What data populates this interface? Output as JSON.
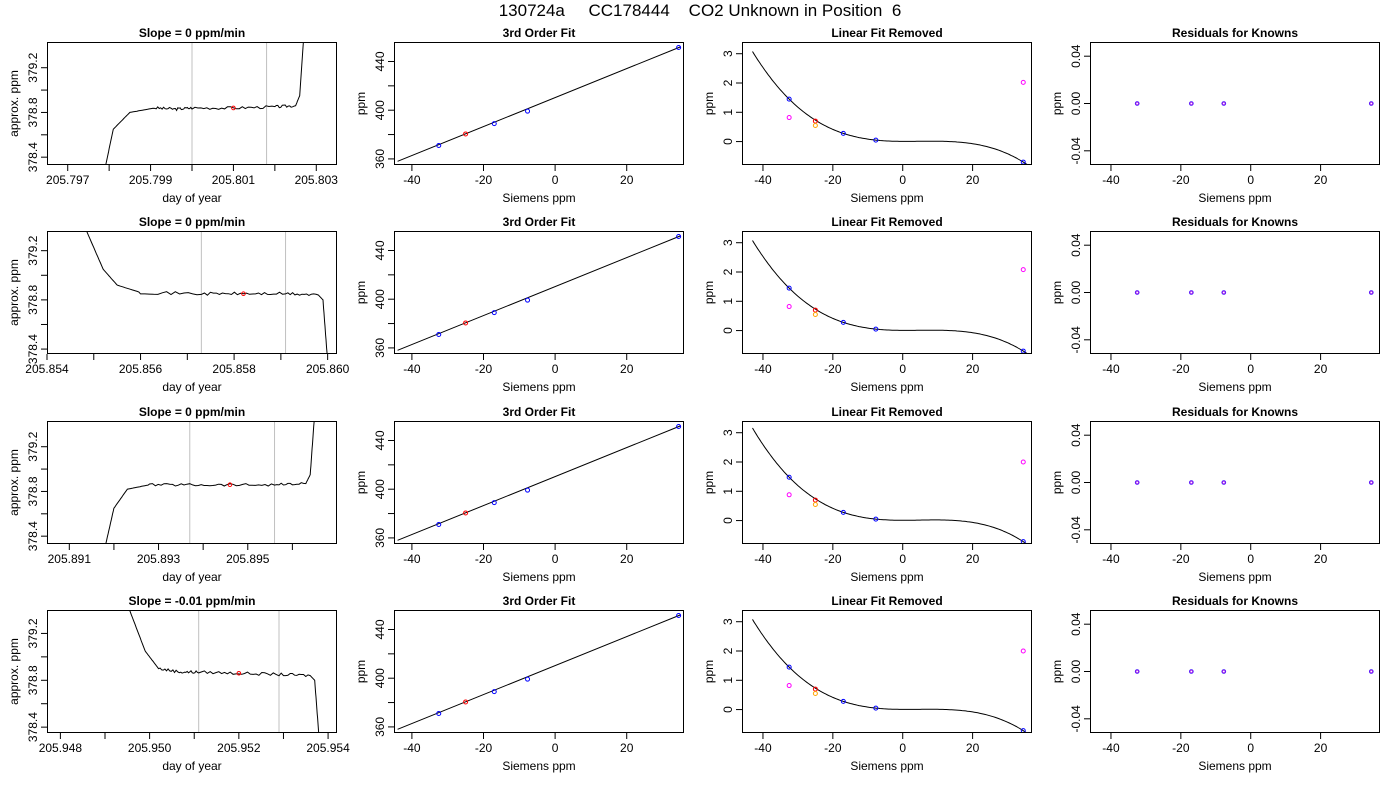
{
  "title": "130724a     CC178444    CO2 Unknown in Position  6",
  "colors": {
    "axis": "#000000",
    "trace": "#000000",
    "guide": "#c0c0c0",
    "known": "#0000ff",
    "residual": "#a020f0",
    "unknown_linear": "#ff0000",
    "unknown_fit": "#ffa500",
    "magenta": "#ff00ff"
  },
  "chart_data": [
    {
      "row": 0,
      "col": 0,
      "type": "line",
      "title": "Slope =  0  ppm/min",
      "xlabel": "day of year",
      "ylabel": "approx. ppm",
      "xlim": [
        205.7965,
        205.8035
      ],
      "ylim": [
        378.33,
        379.43
      ],
      "xticks": [
        205.797,
        205.798,
        205.799,
        205.8,
        205.801,
        205.802,
        205.803
      ],
      "xtick_labels": [
        "205.797",
        "",
        "205.799",
        "",
        "205.801",
        "",
        "205.803"
      ],
      "yticks": [
        378.4,
        378.6,
        378.8,
        379.0,
        379.2
      ],
      "ytick_labels": [
        "378.4",
        "",
        "378.8",
        "",
        "379.2"
      ],
      "guides": [
        205.8,
        205.8018
      ],
      "marker": {
        "x": 205.801,
        "y": 378.84
      },
      "trace": {
        "x": [
          205.7979,
          205.7981,
          205.7985,
          205.7991,
          205.7996,
          205.8,
          205.801,
          205.802,
          205.8025,
          205.8026,
          205.8027
        ],
        "y": [
          378.3,
          378.65,
          378.8,
          378.84,
          378.83,
          378.84,
          378.84,
          378.85,
          378.86,
          378.95,
          379.5
        ]
      }
    },
    {
      "row": 0,
      "col": 1,
      "type": "scatter",
      "title": "3rd Order Fit",
      "xlabel": "Siemens ppm",
      "ylabel": "ppm",
      "xlim": [
        -45,
        36
      ],
      "ylim": [
        355,
        456
      ],
      "xticks": [
        -40,
        -20,
        0,
        20
      ],
      "xtick_labels": [
        "-40",
        "-20",
        "0",
        "20"
      ],
      "yticks": [
        360,
        380,
        400,
        420,
        440
      ],
      "ytick_labels": [
        "360",
        "",
        "400",
        "",
        "440"
      ],
      "line": {
        "x": [
          -44,
          35
        ],
        "y": [
          358,
          452
        ]
      },
      "known": {
        "x": [
          -32.5,
          -17,
          -7.7,
          34.5
        ],
        "y": [
          371.0,
          389.0,
          399.2,
          451.5
        ]
      },
      "unknown": {
        "x": [
          -25
        ],
        "y": [
          380.5
        ]
      }
    },
    {
      "row": 0,
      "col": 2,
      "type": "scatter",
      "title": "Linear Fit Removed",
      "xlabel": "Siemens ppm",
      "ylabel": "ppm",
      "xlim": [
        -46,
        37
      ],
      "ylim": [
        -0.8,
        3.4
      ],
      "xticks": [
        -40,
        -20,
        0,
        20
      ],
      "xtick_labels": [
        "-40",
        "-20",
        "0",
        "20"
      ],
      "yticks": [
        0,
        1,
        2,
        3
      ],
      "ytick_labels": [
        "0",
        "1",
        "2",
        "3"
      ],
      "known": {
        "x": [
          -32.5,
          -17,
          -7.7,
          34.5
        ],
        "y": [
          1.45,
          0.28,
          0.05,
          -0.7
        ]
      },
      "resid_pts": {
        "x": [
          -32.5,
          34.5
        ],
        "y": [
          0.82,
          2.02
        ]
      },
      "unknown_pts": {
        "x": [
          -25,
          -25
        ],
        "y": [
          0.7,
          0.55
        ]
      }
    },
    {
      "row": 0,
      "col": 3,
      "type": "scatter",
      "title": "Residuals for Knowns",
      "xlabel": "Siemens ppm",
      "ylabel": "ppm",
      "xlim": [
        -46,
        37
      ],
      "ylim": [
        -0.052,
        0.052
      ],
      "xticks": [
        -40,
        -20,
        0,
        20
      ],
      "xtick_labels": [
        "-40",
        "-20",
        "0",
        "20"
      ],
      "yticks": [
        -0.04,
        0,
        0.04
      ],
      "ytick_labels": [
        "-0.04",
        "0.00",
        "0.04"
      ],
      "known": {
        "x": [
          -32.5,
          -17,
          -7.7,
          34.5
        ],
        "y": [
          0,
          0,
          0,
          0
        ]
      }
    },
    {
      "row": 1,
      "col": 0,
      "type": "line",
      "title": "Slope =  0  ppm/min",
      "xlabel": "day of year",
      "ylabel": "approx. ppm",
      "xlim": [
        205.854,
        205.8602
      ],
      "ylim": [
        378.36,
        379.36
      ],
      "xticks": [
        205.854,
        205.855,
        205.856,
        205.857,
        205.858,
        205.859,
        205.86
      ],
      "xtick_labels": [
        "205.854",
        "",
        "205.856",
        "",
        "205.858",
        "",
        "205.860"
      ],
      "yticks": [
        378.4,
        378.6,
        378.8,
        379.0,
        379.2
      ],
      "ytick_labels": [
        "378.4",
        "",
        "378.8",
        "",
        "379.2"
      ],
      "guides": [
        205.8573,
        205.8591
      ],
      "marker": {
        "x": 205.8582,
        "y": 378.85
      },
      "trace": {
        "x": [
          205.8548,
          205.8552,
          205.8555,
          205.856,
          205.8573,
          205.8582,
          205.8591,
          205.8598,
          205.8599,
          205.86
        ],
        "y": [
          379.4,
          379.05,
          378.92,
          378.86,
          378.85,
          378.85,
          378.85,
          378.84,
          378.8,
          378.3
        ]
      }
    },
    {
      "row": 1,
      "col": 1,
      "type": "scatter",
      "title": "3rd Order Fit",
      "xlabel": "Siemens ppm",
      "ylabel": "ppm",
      "xlim": [
        -45,
        36
      ],
      "ylim": [
        355,
        456
      ],
      "xticks": [
        -40,
        -20,
        0,
        20
      ],
      "xtick_labels": [
        "-40",
        "-20",
        "0",
        "20"
      ],
      "yticks": [
        360,
        380,
        400,
        420,
        440
      ],
      "ytick_labels": [
        "360",
        "",
        "400",
        "",
        "440"
      ],
      "line": {
        "x": [
          -44,
          35
        ],
        "y": [
          358,
          452
        ]
      },
      "known": {
        "x": [
          -32.5,
          -17,
          -7.7,
          34.5
        ],
        "y": [
          371.0,
          389.0,
          399.2,
          451.5
        ]
      },
      "unknown": {
        "x": [
          -25
        ],
        "y": [
          380.5
        ]
      }
    },
    {
      "row": 1,
      "col": 2,
      "type": "scatter",
      "title": "Linear Fit Removed",
      "xlabel": "Siemens ppm",
      "ylabel": "ppm",
      "xlim": [
        -46,
        37
      ],
      "ylim": [
        -0.8,
        3.4
      ],
      "xticks": [
        -40,
        -20,
        0,
        20
      ],
      "xtick_labels": [
        "-40",
        "-20",
        "0",
        "20"
      ],
      "yticks": [
        0,
        1,
        2,
        3
      ],
      "ytick_labels": [
        "0",
        "1",
        "2",
        "3"
      ],
      "known": {
        "x": [
          -32.5,
          -17,
          -7.7,
          34.5
        ],
        "y": [
          1.45,
          0.28,
          0.05,
          -0.7
        ]
      },
      "resid_pts": {
        "x": [
          -32.5,
          34.5
        ],
        "y": [
          0.82,
          2.08
        ]
      },
      "unknown_pts": {
        "x": [
          -25,
          -25
        ],
        "y": [
          0.7,
          0.55
        ]
      }
    },
    {
      "row": 1,
      "col": 3,
      "type": "scatter",
      "title": "Residuals for Knowns",
      "xlabel": "Siemens ppm",
      "ylabel": "ppm",
      "xlim": [
        -46,
        37
      ],
      "ylim": [
        -0.052,
        0.052
      ],
      "xticks": [
        -40,
        -20,
        0,
        20
      ],
      "xtick_labels": [
        "-40",
        "-20",
        "0",
        "20"
      ],
      "yticks": [
        -0.04,
        0,
        0.04
      ],
      "ytick_labels": [
        "-0.04",
        "0.00",
        "0.04"
      ],
      "known": {
        "x": [
          -32.5,
          -17,
          -7.7,
          34.5
        ],
        "y": [
          0,
          0,
          0,
          0
        ]
      }
    },
    {
      "row": 2,
      "col": 0,
      "type": "line",
      "title": "Slope =  0  ppm/min",
      "xlabel": "day of year",
      "ylabel": "approx. ppm",
      "xlim": [
        205.8905,
        205.897
      ],
      "ylim": [
        378.33,
        379.43
      ],
      "xticks": [
        205.891,
        205.892,
        205.893,
        205.894,
        205.895,
        205.896
      ],
      "xtick_labels": [
        "205.891",
        "",
        "205.893",
        "",
        "205.895",
        ""
      ],
      "yticks": [
        378.4,
        378.6,
        378.8,
        379.0,
        379.2
      ],
      "ytick_labels": [
        "378.4",
        "",
        "378.8",
        "",
        "379.2"
      ],
      "guides": [
        205.8937,
        205.8956
      ],
      "marker": {
        "x": 205.8946,
        "y": 378.86
      },
      "trace": {
        "x": [
          205.8918,
          205.892,
          205.8923,
          205.8928,
          205.8937,
          205.8946,
          205.8956,
          205.8963,
          205.8964,
          205.8965
        ],
        "y": [
          378.3,
          378.65,
          378.82,
          378.86,
          378.86,
          378.86,
          378.86,
          378.87,
          378.95,
          379.5
        ]
      }
    },
    {
      "row": 2,
      "col": 1,
      "type": "scatter",
      "title": "3rd Order Fit",
      "xlabel": "Siemens ppm",
      "ylabel": "ppm",
      "xlim": [
        -45,
        36
      ],
      "ylim": [
        355,
        456
      ],
      "xticks": [
        -40,
        -20,
        0,
        20
      ],
      "xtick_labels": [
        "-40",
        "-20",
        "0",
        "20"
      ],
      "yticks": [
        360,
        380,
        400,
        420,
        440
      ],
      "ytick_labels": [
        "360",
        "",
        "400",
        "",
        "440"
      ],
      "line": {
        "x": [
          -44,
          35
        ],
        "y": [
          358,
          452
        ]
      },
      "known": {
        "x": [
          -32.5,
          -17,
          -7.7,
          34.5
        ],
        "y": [
          371.0,
          389.0,
          399.2,
          451.5
        ]
      },
      "unknown": {
        "x": [
          -25
        ],
        "y": [
          380.5
        ]
      }
    },
    {
      "row": 2,
      "col": 2,
      "type": "scatter",
      "title": "Linear Fit Removed",
      "xlabel": "Siemens ppm",
      "ylabel": "ppm",
      "xlim": [
        -46,
        37
      ],
      "ylim": [
        -0.8,
        3.4
      ],
      "xticks": [
        -40,
        -20,
        0,
        20
      ],
      "xtick_labels": [
        "-40",
        "-20",
        "0",
        "20"
      ],
      "yticks": [
        0,
        1,
        2,
        3
      ],
      "ytick_labels": [
        "0",
        "1",
        "2",
        "3"
      ],
      "known": {
        "x": [
          -32.5,
          -17,
          -7.7,
          34.5
        ],
        "y": [
          1.48,
          0.28,
          0.05,
          -0.72
        ]
      },
      "resid_pts": {
        "x": [
          -32.5,
          34.5
        ],
        "y": [
          0.88,
          2.0
        ]
      },
      "unknown_pts": {
        "x": [
          -25,
          -25
        ],
        "y": [
          0.7,
          0.55
        ]
      }
    },
    {
      "row": 2,
      "col": 3,
      "type": "scatter",
      "title": "Residuals for Knowns",
      "xlabel": "Siemens ppm",
      "ylabel": "ppm",
      "xlim": [
        -46,
        37
      ],
      "ylim": [
        -0.052,
        0.052
      ],
      "xticks": [
        -40,
        -20,
        0,
        20
      ],
      "xtick_labels": [
        "-40",
        "-20",
        "0",
        "20"
      ],
      "yticks": [
        -0.04,
        0,
        0.04
      ],
      "ytick_labels": [
        "-0.04",
        "0.00",
        "0.04"
      ],
      "known": {
        "x": [
          -32.5,
          -17,
          -7.7,
          34.5
        ],
        "y": [
          0,
          0,
          0,
          0
        ]
      }
    },
    {
      "row": 3,
      "col": 0,
      "type": "line",
      "title": "Slope =  -0.01  ppm/min",
      "xlabel": "day of year",
      "ylabel": "approx. ppm",
      "xlim": [
        205.9477,
        205.9542
      ],
      "ylim": [
        378.35,
        379.4
      ],
      "xticks": [
        205.948,
        205.949,
        205.95,
        205.951,
        205.952,
        205.953,
        205.954
      ],
      "xtick_labels": [
        "205.948",
        "",
        "205.950",
        "",
        "205.952",
        "",
        "205.954"
      ],
      "yticks": [
        378.4,
        378.6,
        378.8,
        379.0,
        379.2
      ],
      "ytick_labels": [
        "378.4",
        "",
        "378.8",
        "",
        "379.2"
      ],
      "guides": [
        205.9511,
        205.9529
      ],
      "marker": {
        "x": 205.952,
        "y": 378.86
      },
      "trace": {
        "x": [
          205.9495,
          205.9499,
          205.9502,
          205.9507,
          205.9511,
          205.952,
          205.9529,
          205.9536,
          205.9537,
          205.9538
        ],
        "y": [
          379.45,
          379.05,
          378.9,
          378.87,
          378.87,
          378.86,
          378.85,
          378.84,
          378.8,
          378.3
        ]
      }
    },
    {
      "row": 3,
      "col": 1,
      "type": "scatter",
      "title": "3rd Order Fit",
      "xlabel": "Siemens ppm",
      "ylabel": "ppm",
      "xlim": [
        -45,
        36
      ],
      "ylim": [
        355,
        456
      ],
      "xticks": [
        -40,
        -20,
        0,
        20
      ],
      "xtick_labels": [
        "-40",
        "-20",
        "0",
        "20"
      ],
      "yticks": [
        360,
        380,
        400,
        420,
        440
      ],
      "ytick_labels": [
        "360",
        "",
        "400",
        "",
        "440"
      ],
      "line": {
        "x": [
          -44,
          35
        ],
        "y": [
          358,
          452
        ]
      },
      "known": {
        "x": [
          -32.5,
          -17,
          -7.7,
          34.5
        ],
        "y": [
          371.0,
          389.0,
          399.2,
          451.5
        ]
      },
      "unknown": {
        "x": [
          -25
        ],
        "y": [
          380.5
        ]
      }
    },
    {
      "row": 3,
      "col": 2,
      "type": "scatter",
      "title": "Linear Fit Removed",
      "xlabel": "Siemens ppm",
      "ylabel": "ppm",
      "xlim": [
        -46,
        37
      ],
      "ylim": [
        -0.8,
        3.4
      ],
      "xticks": [
        -40,
        -20,
        0,
        20
      ],
      "xtick_labels": [
        "-40",
        "-20",
        "0",
        "20"
      ],
      "yticks": [
        0,
        1,
        2,
        3
      ],
      "ytick_labels": [
        "0",
        "1",
        "2",
        "3"
      ],
      "known": {
        "x": [
          -32.5,
          -17,
          -7.7,
          34.5
        ],
        "y": [
          1.45,
          0.28,
          0.05,
          -0.72
        ]
      },
      "resid_pts": {
        "x": [
          -32.5,
          34.5
        ],
        "y": [
          0.82,
          2.0
        ]
      },
      "unknown_pts": {
        "x": [
          -25,
          -25
        ],
        "y": [
          0.7,
          0.55
        ]
      }
    },
    {
      "row": 3,
      "col": 3,
      "type": "scatter",
      "title": "Residuals for Knowns",
      "xlabel": "Siemens ppm",
      "ylabel": "ppm",
      "xlim": [
        -46,
        37
      ],
      "ylim": [
        -0.052,
        0.052
      ],
      "xticks": [
        -40,
        -20,
        0,
        20
      ],
      "xtick_labels": [
        "-40",
        "-20",
        "0",
        "20"
      ],
      "yticks": [
        -0.04,
        0,
        0.04
      ],
      "ytick_labels": [
        "-0.04",
        "0.00",
        "0.04"
      ],
      "known": {
        "x": [
          -32.5,
          -17,
          -7.7,
          34.5
        ],
        "y": [
          0,
          0,
          0,
          0
        ]
      }
    }
  ]
}
